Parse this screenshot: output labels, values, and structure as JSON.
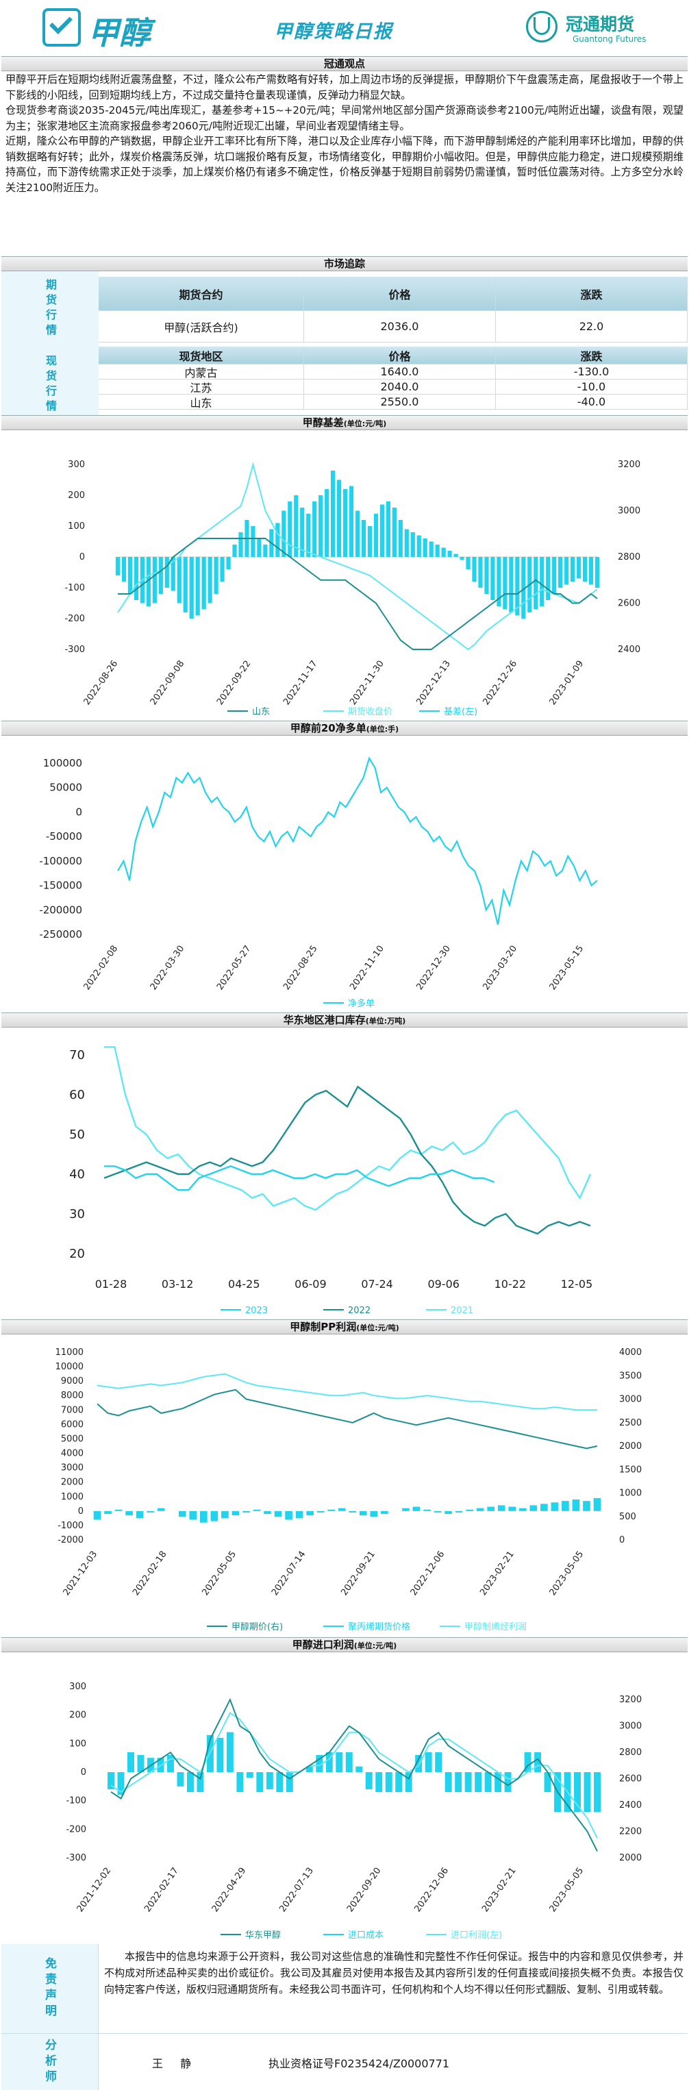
{
  "header": {
    "logo_text": "甲醇",
    "report_title": "甲醇策略日报",
    "brand_name": "冠通期货",
    "brand_en": "Guantong Futures"
  },
  "viewpoint": {
    "title": "冠通观点",
    "paragraphs": [
      "甲醇平开后在短期均线附近震荡盘整，不过，隆众公布产需数略有好转，加上周边市场的反弹提振，甲醇期价下午盘震荡走高，尾盘报收于一个带上下影线的小阳线，回到短期均线上方，不过成交量持仓量表现谨慎，反弹动力稍显欠缺。",
      "仓现货参考商谈2035-2045元/吨出库现汇，基差参考+15~+20元/吨；早间常州地区部分国产货源商谈参考2100元/吨附近出罐，谈盘有限，观望为主；张家港地区主流商家报盘参考2060元/吨附近现汇出罐，早间业者观望情绪主导。",
      "近期，隆众公布甲醇的产销数据，甲醇企业开工率环比有所下降，港口以及企业库存小幅下降，而下游甲醇制烯烃的产能利用率环比增加，甲醇的供销数据略有好转；此外，煤炭价格震荡反弹，坑口端报价略有反复，市场情绪变化，甲醇期价小幅收阳。但是，甲醇供应能力稳定，进口规模预期维持高位，而下游传统需求正处于淡季，加上煤炭价格仍有诸多不确定性，价格反弹基于短期目前弱势仍需谨慎，暂时低位震荡对待。上方多空分水岭关注2100附近压力。"
    ]
  },
  "market": {
    "title": "市场追踪",
    "futures_label": "期货行情",
    "futures_headers": [
      "期货合约",
      "价格",
      "涨跌"
    ],
    "futures_rows": [
      [
        "甲醇(活跃合约)",
        "2036.0",
        "22.0"
      ]
    ],
    "spot_label": "现货行情",
    "spot_headers": [
      "现货地区",
      "价格",
      "涨跌"
    ],
    "spot_rows": [
      [
        "内蒙古",
        "1640.0",
        "-130.0"
      ],
      [
        "江苏",
        "2040.0",
        "-10.0"
      ],
      [
        "山东",
        "2550.0",
        "-40.0"
      ]
    ]
  },
  "charts": {
    "basis": {
      "title": "甲醇基差",
      "unit": "(单位:元/吨)",
      "left_ticks": [
        "300",
        "200",
        "100",
        "0",
        "-100",
        "-200",
        "-300"
      ],
      "right_ticks": [
        "3200",
        "3000",
        "2800",
        "2600",
        "2400"
      ],
      "x_ticks": [
        "2022-08-26",
        "2022-09-08",
        "2022-09-22",
        "2022-11-17",
        "2022-11-30",
        "2022-12-13",
        "2022-12-26",
        "2023-01-09"
      ],
      "legend": [
        "山东",
        "期货收盘价",
        "基差(左)"
      ]
    },
    "net": {
      "title": "甲醇前20净多单",
      "unit": "(单位:手)",
      "y_ticks": [
        "100000",
        "50000",
        "0",
        "-50000",
        "-100000",
        "-150000",
        "-200000",
        "-250000"
      ],
      "x_ticks": [
        "2022-02-08",
        "2022-03-30",
        "2022-05-27",
        "2022-08-25",
        "2022-11-10",
        "2022-12-30",
        "2023-03-20",
        "2023-05-15"
      ],
      "legend": [
        "净多单"
      ]
    },
    "stock": {
      "title": "华东地区港口库存",
      "unit": "(单位:万吨)",
      "y_ticks": [
        "70",
        "60",
        "50",
        "40",
        "30",
        "20"
      ],
      "x_ticks": [
        "01-28",
        "03-12",
        "04-25",
        "06-09",
        "07-24",
        "09-06",
        "10-22",
        "12-05"
      ],
      "legend": [
        "2023",
        "2022",
        "2021"
      ]
    },
    "mto": {
      "title": "甲醇制PP利润",
      "unit": "(单位:元/吨)",
      "left_ticks": [
        "11000",
        "10000",
        "9000",
        "8000",
        "7000",
        "6000",
        "5000",
        "4000",
        "3000",
        "2000",
        "1000",
        "0",
        "-1000",
        "-2000"
      ],
      "right_ticks": [
        "4000",
        "3500",
        "3000",
        "2500",
        "2000",
        "1500",
        "1000",
        "500",
        "0"
      ],
      "x_ticks": [
        "2021-12-03",
        "2022-02-18",
        "2022-05-05",
        "2022-07-14",
        "2022-09-21",
        "2022-12-06",
        "2023-02-21",
        "2023-05-05"
      ],
      "legend": [
        "甲醇期价(右)",
        "聚丙烯期货价格",
        "甲醇制烯烃利润"
      ]
    },
    "import": {
      "title": "甲醇进口利润",
      "unit": "(单位:元/吨)",
      "left_ticks": [
        "300",
        "200",
        "100",
        "0",
        "-100",
        "-200",
        "-300"
      ],
      "right_ticks": [
        "3200",
        "3000",
        "2800",
        "2600",
        "2400",
        "2200",
        "2000"
      ],
      "x_ticks": [
        "2021-12-02",
        "2022-02-17",
        "2022-04-29",
        "2022-07-13",
        "2022-09-20",
        "2022-12-06",
        "2023-02-21",
        "2023-05-05"
      ],
      "legend": [
        "华东甲醇",
        "进口成本",
        "进口利润(左)"
      ]
    }
  },
  "chart_data": [
    {
      "type": "bar",
      "name_ref": "basis",
      "title": "甲醇基差",
      "ylim_left": [
        -300,
        300
      ],
      "ylim_right": [
        2400,
        3200
      ],
      "series": [
        {
          "name": "基差(左)",
          "values": [
            -60,
            -80,
            -120,
            -140,
            -150,
            -160,
            -150,
            -120,
            -100,
            -110,
            -150,
            -180,
            -200,
            -190,
            -170,
            -150,
            -120,
            -80,
            -40,
            40,
            80,
            120,
            100,
            60,
            40,
            90,
            110,
            150,
            180,
            200,
            160,
            140,
            180,
            200,
            220,
            280,
            250,
            220,
            230,
            150,
            120,
            100,
            140,
            170,
            180,
            160,
            120,
            90,
            80,
            70,
            60,
            50,
            40,
            30,
            20,
            10,
            -10,
            -40,
            -80,
            -100,
            -120,
            -140,
            -160,
            -170,
            -180,
            -190,
            -200,
            -180,
            -170,
            -160,
            -140,
            -120,
            -100,
            -90,
            -80,
            -70,
            -80,
            -90,
            -100
          ]
        },
        {
          "name": "期货收盘价",
          "values": [
            2560,
            2600,
            2640,
            2680,
            2700,
            2720,
            2730,
            2740,
            2760,
            2780,
            2800,
            2840,
            2860,
            2880,
            2900,
            2920,
            2940,
            2960,
            2980,
            3000,
            3020,
            3100,
            3200,
            3100,
            3000,
            2950,
            2900,
            2870,
            2850,
            2840,
            2830,
            2820,
            2810,
            2800,
            2790,
            2780,
            2770,
            2760,
            2750,
            2740,
            2730,
            2720,
            2700,
            2680,
            2660,
            2640,
            2620,
            2600,
            2580,
            2560,
            2540,
            2520,
            2500,
            2480,
            2460,
            2440,
            2420,
            2400,
            2420,
            2450,
            2480,
            2500,
            2520,
            2540,
            2560,
            2580,
            2600,
            2620,
            2640,
            2660,
            2650,
            2640,
            2630,
            2620,
            2610,
            2600,
            2620,
            2640,
            2660
          ]
        },
        {
          "name": "山东",
          "values": [
            2640,
            2640,
            2640,
            2660,
            2680,
            2700,
            2720,
            2740,
            2760,
            2800,
            2820,
            2840,
            2860,
            2880,
            2880,
            2880,
            2880,
            2880,
            2880,
            2880,
            2880,
            2880,
            2880,
            2880,
            2880,
            2860,
            2840,
            2820,
            2800,
            2780,
            2760,
            2740,
            2720,
            2700,
            2700,
            2700,
            2700,
            2700,
            2680,
            2660,
            2640,
            2620,
            2600,
            2560,
            2520,
            2480,
            2440,
            2420,
            2400,
            2400,
            2400,
            2400,
            2420,
            2440,
            2460,
            2480,
            2500,
            2520,
            2540,
            2560,
            2580,
            2600,
            2620,
            2640,
            2640,
            2640,
            2660,
            2680,
            2700,
            2680,
            2660,
            2640,
            2640,
            2620,
            2600,
            2600,
            2620,
            2640,
            2620
          ]
        }
      ]
    },
    {
      "type": "line",
      "name_ref": "net",
      "title": "甲醇前20净多单",
      "ylim": [
        -250000,
        120000
      ],
      "series": [
        {
          "name": "净多单",
          "values": [
            -120000,
            -100000,
            -140000,
            -60000,
            -20000,
            10000,
            -30000,
            0,
            40000,
            30000,
            70000,
            60000,
            80000,
            60000,
            70000,
            40000,
            20000,
            30000,
            10000,
            0,
            -20000,
            -10000,
            10000,
            -30000,
            -50000,
            -60000,
            -40000,
            -70000,
            -50000,
            -40000,
            -60000,
            -30000,
            -40000,
            -50000,
            -30000,
            -20000,
            0,
            -10000,
            20000,
            10000,
            30000,
            50000,
            70000,
            110000,
            90000,
            40000,
            50000,
            30000,
            10000,
            0,
            -20000,
            -10000,
            -30000,
            -40000,
            -60000,
            -50000,
            -70000,
            -80000,
            -60000,
            -90000,
            -110000,
            -120000,
            -150000,
            -200000,
            -180000,
            -230000,
            -160000,
            -190000,
            -140000,
            -100000,
            -120000,
            -80000,
            -90000,
            -110000,
            -100000,
            -130000,
            -120000,
            -90000,
            -110000,
            -140000,
            -120000,
            -150000,
            -140000
          ]
        }
      ]
    },
    {
      "type": "line",
      "name_ref": "stock",
      "title": "华东地区港口库存",
      "ylim": [
        20,
        75
      ],
      "series": [
        {
          "name": "2023",
          "values": [
            42,
            42,
            41,
            39,
            40,
            40,
            38,
            36,
            36,
            39,
            40,
            41,
            42,
            41,
            40,
            40,
            41,
            40,
            39,
            39,
            40,
            39,
            40,
            40,
            41,
            39,
            38,
            37,
            38,
            39,
            39,
            40,
            40,
            41,
            40,
            39,
            39,
            38
          ]
        },
        {
          "name": "2022",
          "values": [
            39,
            40,
            41,
            42,
            43,
            42,
            41,
            40,
            40,
            42,
            43,
            42,
            44,
            43,
            42,
            43,
            46,
            50,
            54,
            58,
            60,
            61,
            59,
            57,
            62,
            60,
            58,
            56,
            54,
            50,
            45,
            42,
            38,
            33,
            30,
            28,
            27,
            29,
            30,
            27,
            26,
            25,
            27,
            28,
            27,
            28,
            27
          ]
        },
        {
          "name": "2021",
          "values": [
            72,
            72,
            60,
            52,
            50,
            46,
            44,
            45,
            42,
            40,
            39,
            38,
            37,
            36,
            34,
            35,
            32,
            33,
            34,
            32,
            31,
            33,
            35,
            36,
            38,
            40,
            42,
            41,
            44,
            46,
            45,
            47,
            46,
            48,
            45,
            46,
            48,
            52,
            55,
            56,
            53,
            50,
            47,
            44,
            38,
            34,
            40
          ]
        }
      ]
    },
    {
      "type": "line",
      "name_ref": "mto",
      "title": "甲醇制PP利润",
      "ylim_left": [
        -2000,
        11000
      ],
      "ylim_right": [
        0,
        4000
      ],
      "series": [
        {
          "name": "甲醇期价(右)",
          "values": [
            2900,
            2700,
            2650,
            2750,
            2800,
            2850,
            2700,
            2750,
            2800,
            2900,
            3000,
            3100,
            3150,
            3200,
            3000,
            2950,
            2900,
            2850,
            2800,
            2750,
            2700,
            2650,
            2600,
            2550,
            2500,
            2600,
            2700,
            2600,
            2550,
            2500,
            2450,
            2500,
            2550,
            2600,
            2550,
            2500,
            2450,
            2400,
            2350,
            2300,
            2250,
            2200,
            2150,
            2100,
            2050,
            2000,
            1950,
            2000
          ]
        },
        {
          "name": "聚丙烯期货价格",
          "values": [
            8700,
            8600,
            8500,
            8600,
            8700,
            8800,
            8700,
            8800,
            8900,
            9100,
            9300,
            9400,
            9500,
            9200,
            8900,
            8700,
            8600,
            8500,
            8400,
            8300,
            8200,
            8100,
            8000,
            8000,
            8100,
            8200,
            8000,
            7900,
            7800,
            7800,
            7900,
            8000,
            7900,
            7800,
            7700,
            7600,
            7600,
            7500,
            7400,
            7300,
            7200,
            7100,
            7100,
            7200,
            7100,
            7000,
            7000,
            7000
          ]
        },
        {
          "name": "甲醇制烯烃利润",
          "values": [
            -600,
            -200,
            100,
            -300,
            -500,
            -100,
            200,
            0,
            -400,
            -600,
            -800,
            -700,
            -500,
            -300,
            -100,
            100,
            -200,
            -400,
            -600,
            -500,
            -300,
            -100,
            100,
            200,
            -100,
            -300,
            -400,
            -200,
            0,
            200,
            300,
            100,
            -100,
            -200,
            -100,
            100,
            200,
            300,
            400,
            300,
            200,
            400,
            500,
            600,
            700,
            800,
            700,
            900
          ]
        }
      ]
    },
    {
      "type": "line",
      "name_ref": "import",
      "title": "甲醇进口利润",
      "ylim_left": [
        -300,
        300
      ],
      "ylim_right": [
        2000,
        3300
      ],
      "series": [
        {
          "name": "华东甲醇",
          "values": [
            2500,
            2450,
            2600,
            2650,
            2700,
            2750,
            2800,
            2700,
            2650,
            2600,
            2900,
            3050,
            3200,
            3000,
            2950,
            2800,
            2700,
            2650,
            2600,
            2650,
            2700,
            2750,
            2800,
            2900,
            3000,
            2950,
            2850,
            2750,
            2700,
            2650,
            2600,
            2750,
            2900,
            2950,
            2850,
            2800,
            2750,
            2700,
            2650,
            2600,
            2550,
            2600,
            2700,
            2750,
            2650,
            2500,
            2400,
            2300,
            2200,
            2050
          ]
        },
        {
          "name": "进口成本",
          "values": [
            2550,
            2500,
            2550,
            2600,
            2650,
            2700,
            2750,
            2750,
            2700,
            2650,
            2800,
            2950,
            3100,
            3050,
            2950,
            2850,
            2750,
            2700,
            2650,
            2650,
            2700,
            2700,
            2750,
            2850,
            2950,
            2950,
            2900,
            2800,
            2750,
            2700,
            2650,
            2700,
            2850,
            2900,
            2900,
            2850,
            2800,
            2750,
            2700,
            2650,
            2600,
            2600,
            2650,
            2700,
            2700,
            2600,
            2500,
            2400,
            2300,
            2150
          ]
        },
        {
          "name": "进口利润(左)",
          "values": [
            -60,
            -80,
            70,
            60,
            50,
            50,
            60,
            -50,
            -70,
            -70,
            130,
            120,
            140,
            -70,
            -20,
            -70,
            -60,
            -70,
            -70,
            0,
            20,
            60,
            70,
            70,
            70,
            20,
            -60,
            -70,
            -70,
            -70,
            -70,
            60,
            70,
            70,
            -70,
            -70,
            -70,
            -70,
            -70,
            -70,
            -70,
            0,
            70,
            70,
            -70,
            -140,
            -140,
            -140,
            -140,
            -140
          ]
        }
      ]
    }
  ],
  "disclaimer": {
    "label": "免责声明",
    "text": "本报告中的信息均来源于公开资料，我公司对这些信息的准确性和完整性不作任何保证。报告中的内容和意见仅供参考，并不构成对所述品种买卖的出价或征价。我公司及其雇员对使用本报告及其内容所引发的任何直接或间接损失概不负责。本报告仅向特定客户传送，版权归冠通期货所有。未经我公司书面许可，任何机构和个人均不得以任何形式翻版、复制、引用或转载。"
  },
  "analyst": {
    "label": "分析师",
    "name": "王 静",
    "cert": "执业资格证号F0235424/Z0000771"
  },
  "colors": {
    "brand": "#1aa3c3",
    "teal_dark": "#1b8f8f",
    "cyan": "#22d3ee",
    "light_cyan": "#5ee7f5"
  }
}
